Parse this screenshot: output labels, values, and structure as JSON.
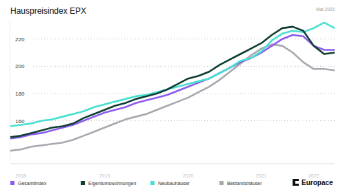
{
  "chart_data": {
    "type": "line",
    "title": "Hauspreisindex EPX",
    "subtitle": "Mai 2023",
    "source": "Europace",
    "categories": [
      null,
      "2018",
      null,
      null,
      null,
      null,
      null,
      null,
      null,
      "2019",
      null,
      null,
      null,
      null,
      null,
      null,
      null,
      "2020",
      null,
      null,
      null,
      null,
      null,
      null,
      "2021",
      null,
      null,
      null,
      null,
      "2022",
      null,
      null
    ],
    "series": [
      {
        "name": "Gesamtindex",
        "color": "#8b5cf0",
        "values": [
          147,
          148,
          150,
          151,
          153,
          155,
          157,
          160,
          163,
          166,
          168,
          170,
          173,
          175,
          177,
          179,
          182,
          185,
          188,
          191,
          195,
          199,
          203,
          206,
          210,
          215,
          220,
          223,
          222,
          215,
          212,
          212
        ]
      },
      {
        "name": "Eigentumswohnungen",
        "color": "#0f3d32",
        "values": [
          148,
          149,
          151,
          153,
          155,
          156,
          158,
          162,
          165,
          168,
          171,
          173,
          176,
          178,
          180,
          183,
          187,
          191,
          193,
          196,
          201,
          205,
          209,
          213,
          217,
          223,
          228,
          229,
          226,
          215,
          209,
          210
        ]
      },
      {
        "name": "Neubauhäuser",
        "color": "#45e0d0",
        "values": [
          156,
          157,
          158,
          160,
          161,
          163,
          165,
          167,
          170,
          172,
          174,
          176,
          178,
          179,
          181,
          183,
          185,
          187,
          189,
          191,
          195,
          199,
          204,
          206,
          211,
          219,
          224,
          226,
          225,
          228,
          232,
          228
        ]
      },
      {
        "name": "Bestandshäuser",
        "color": "#a7a7b0",
        "values": [
          138,
          139,
          141,
          142,
          143,
          144,
          146,
          149,
          152,
          155,
          158,
          161,
          163,
          165,
          168,
          171,
          174,
          177,
          181,
          185,
          190,
          196,
          202,
          208,
          213,
          216,
          215,
          210,
          203,
          198,
          198,
          197
        ]
      }
    ],
    "ylim": [
      130,
      235
    ],
    "yticks": [
      160,
      180,
      200,
      220
    ],
    "grid": true,
    "legend": "bottom"
  }
}
